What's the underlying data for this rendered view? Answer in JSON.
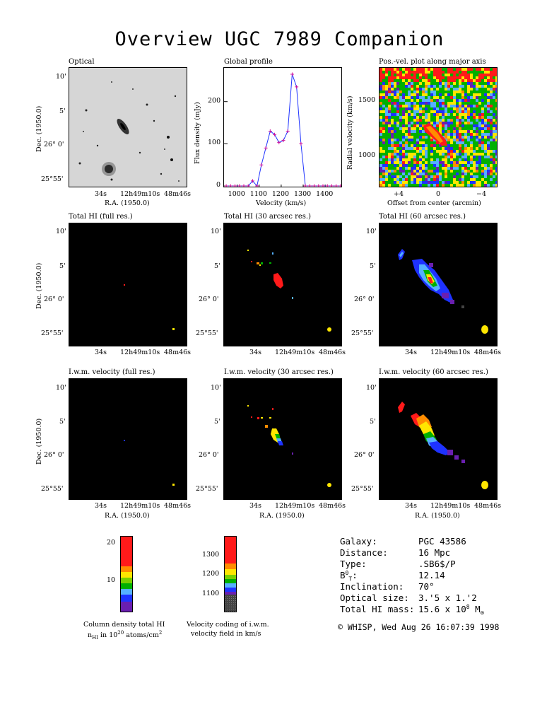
{
  "title": "Overview UGC 7989 Companion",
  "panels": {
    "optical": "Optical",
    "global_profile": "Global profile",
    "posvel": "Pos.-vel. plot along major axis",
    "hi_full": "Total HI (full res.)",
    "hi_30": "Total HI (30 arcsec res.)",
    "hi_60": "Total HI (60 arcsec res.)",
    "vel_full": "I.w.m. velocity (full res.)",
    "vel_30": "I.w.m. velocity (30 arcsec res.)",
    "vel_60": "I.w.m. velocity (60 arcsec res.)"
  },
  "axes": {
    "dec_label": "Dec. (1950.0)",
    "ra_label": "R.A. (1950.0)",
    "dec_ticks": [
      "10'",
      "5'",
      "26° 0'",
      "25°55'"
    ],
    "ra_ticks": [
      "34s",
      "12h49m10s",
      "48m46s"
    ],
    "flux_label": "Flux density (mJy)",
    "vel_label": "Velocity (km/s)",
    "rv_label": "Radial velocity (km/s)",
    "offset_label": "Offset from center (arcmin)",
    "offset_ticks": [
      "+4",
      "0",
      "−4"
    ],
    "rv_ticks": [
      "1500",
      "1000"
    ]
  },
  "chart_data": {
    "type": "line",
    "title": "Global profile",
    "xlabel": "Velocity (km/s)",
    "ylabel": "Flux density (mJy)",
    "xlim": [
      940,
      1480
    ],
    "ylim": [
      -5,
      280
    ],
    "xticks": [
      1000,
      1100,
      1200,
      1300,
      1400
    ],
    "yticks": [
      0,
      100,
      200
    ],
    "series": [
      {
        "x": [
          950,
          970,
          990,
          1010,
          1030,
          1050,
          1070,
          1090,
          1110,
          1130,
          1150,
          1170,
          1190,
          1210,
          1230,
          1250,
          1270,
          1290,
          1310,
          1330,
          1350,
          1370,
          1390,
          1410,
          1430,
          1450,
          1470
        ],
        "values": [
          0,
          0,
          0,
          0,
          0,
          0,
          12,
          0,
          50,
          90,
          130,
          122,
          103,
          108,
          130,
          265,
          235,
          100,
          0,
          0,
          0,
          0,
          0,
          0,
          0,
          0,
          0
        ]
      }
    ]
  },
  "colorbars": {
    "density": {
      "ticks": [
        "20",
        "10"
      ],
      "caption1": "Column density total HI",
      "caption2": "n",
      "caption2_sub": "HI",
      "caption2_rest": " in 10",
      "caption2_sup": "20",
      "caption2_end": " atoms/cm",
      "caption2_sup2": "2"
    },
    "velocity": {
      "ticks": [
        "1300",
        "1200",
        "1100"
      ],
      "caption1": "Velocity coding of i.w.m.",
      "caption2": "velocity field in km/s"
    }
  },
  "info": {
    "rows": [
      {
        "k": "Galaxy:",
        "v": "PGC 43586"
      },
      {
        "k": "Distance:",
        "v": "16 Mpc"
      },
      {
        "k": "Type:",
        "v": ".SB6$/P"
      },
      {
        "k": "B",
        "v": "12.14"
      },
      {
        "k": "Inclination:",
        "v": "70°"
      },
      {
        "k": "Optical size:",
        "v": "3.'5 x 1.'2"
      },
      {
        "k": "Total HI mass:",
        "v": "15.6 x 10"
      }
    ],
    "b_sup": "0",
    "b_sub": "T",
    "b_colon": ":",
    "mass_sup": "8",
    "mass_unit": " M",
    "mass_sun": "⊙",
    "copyright": "© WHISP, Wed Aug 26 16:07:39 1998"
  },
  "colors": {
    "red": "#ff1a1a",
    "orange": "#ff8c00",
    "yellow": "#ffe600",
    "green": "#00b000",
    "lightblue": "#55b0ff",
    "blue": "#1e32ff",
    "purple": "#6a1fb0",
    "gray": "#555555"
  }
}
